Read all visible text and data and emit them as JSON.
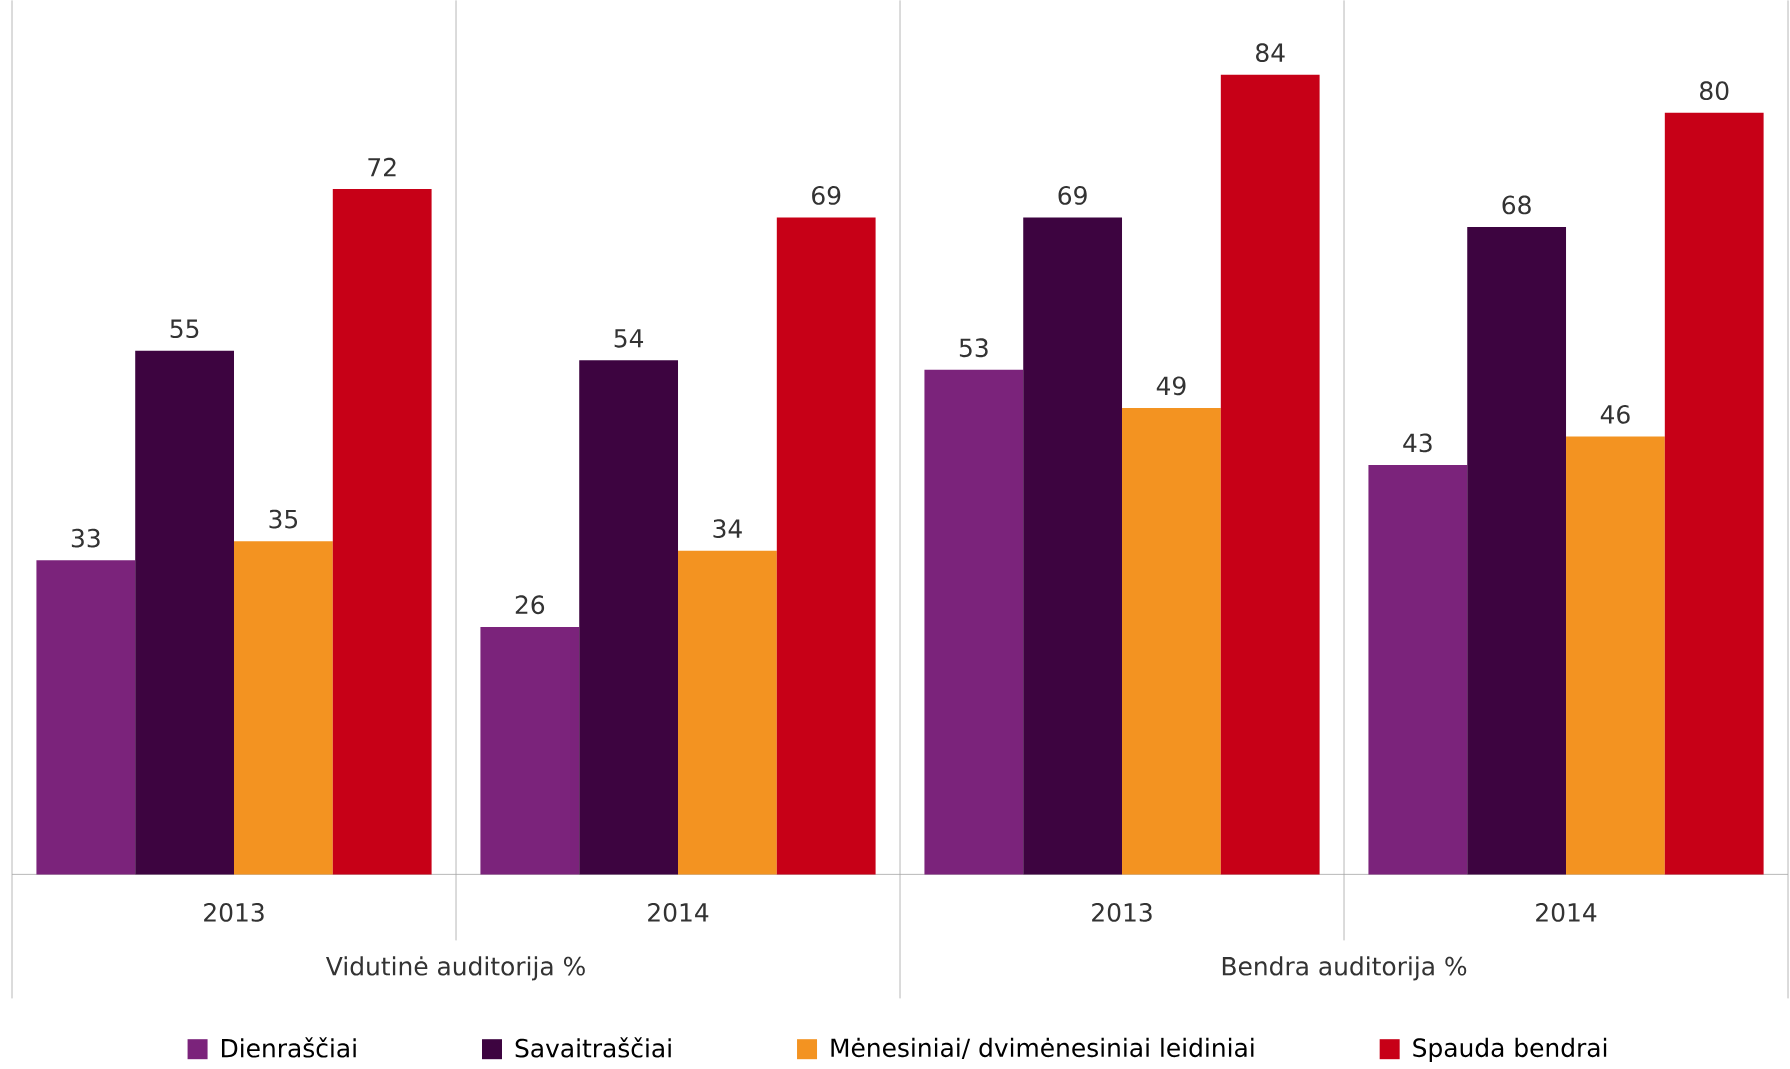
{
  "chart_data": {
    "type": "bar",
    "categories": [
      "2013",
      "2014",
      "2013",
      "2014"
    ],
    "series": [
      {
        "name": "Dienraščiai",
        "color": "#7b237b",
        "values": [
          33,
          26,
          53,
          43
        ]
      },
      {
        "name": "Savaitraščiai",
        "color": "#3d0440",
        "values": [
          55,
          54,
          69,
          68
        ]
      },
      {
        "name": "Mėnesiniai/ dvimėnesiniai leidiniai",
        "color": "#f39321",
        "values": [
          35,
          34,
          49,
          46
        ]
      },
      {
        "name": "Spauda bendrai",
        "color": "#c70017",
        "values": [
          72,
          69,
          84,
          80
        ]
      }
    ],
    "annotations": [
      "Vidutinė auditorija %",
      "Bendra auditorija %"
    ],
    "data_labels": true,
    "legend": "bottom"
  }
}
